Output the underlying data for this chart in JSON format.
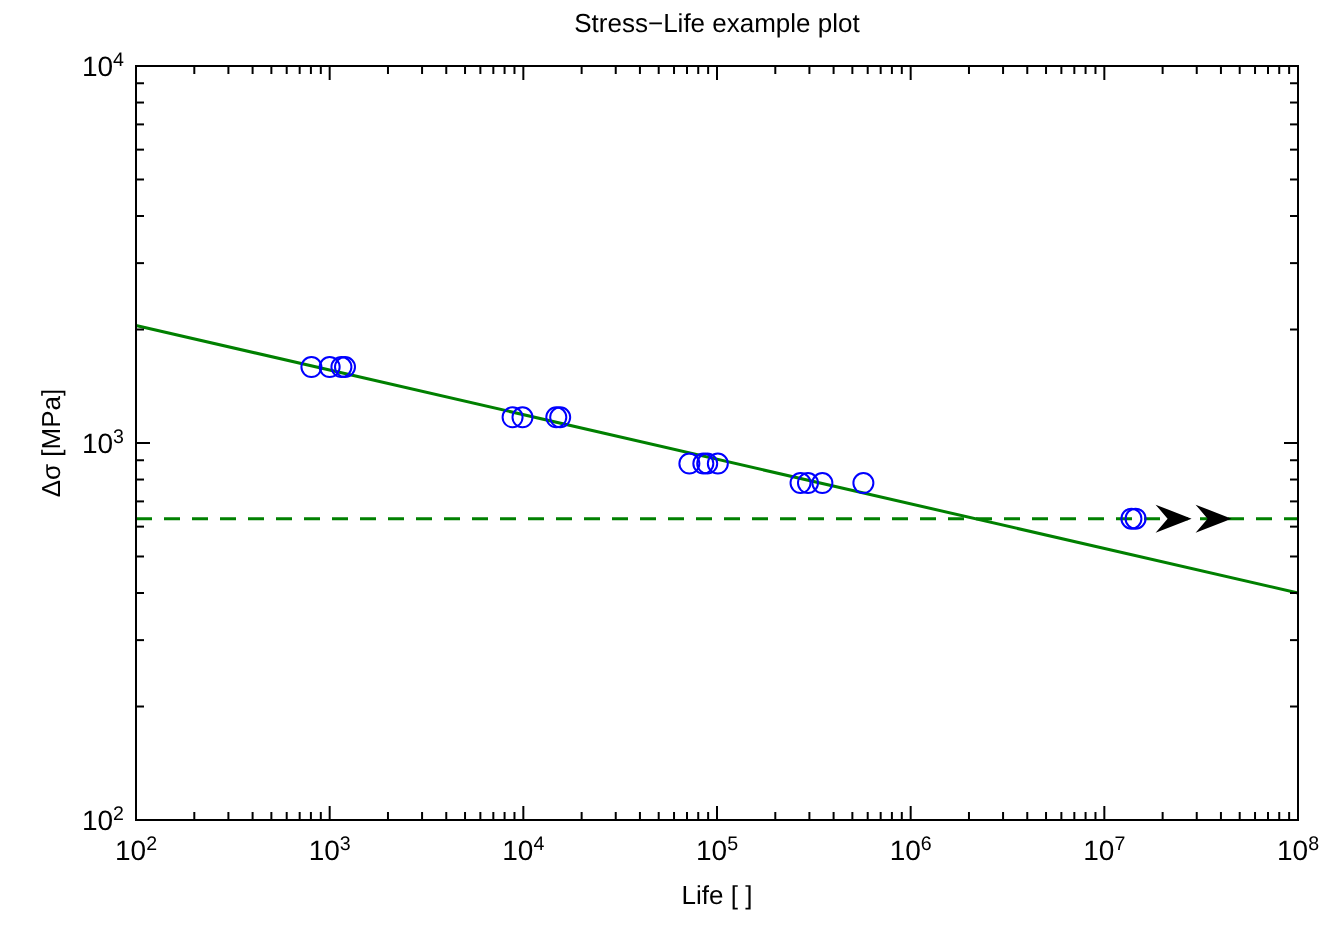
{
  "chart_data": {
    "type": "scatter",
    "title": "Stress−Life example plot",
    "xlabel": "Life [ ]",
    "ylabel": "Δσ [MPa]",
    "log": "xy",
    "grid": false,
    "marker": "circle",
    "xlim": [
      100,
      100000000
    ],
    "ylim": [
      100,
      10000
    ],
    "xticks": [
      {
        "value": 100,
        "label": "10$^{2}$"
      },
      {
        "value": 200,
        "label": null
      },
      {
        "value": 300,
        "label": null
      },
      {
        "value": 400,
        "label": null
      },
      {
        "value": 500,
        "label": null
      },
      {
        "value": 600,
        "label": null
      },
      {
        "value": 700,
        "label": null
      },
      {
        "value": 800,
        "label": null
      },
      {
        "value": 900,
        "label": null
      },
      {
        "value": 1000,
        "label": "10$^{3}$"
      },
      {
        "value": 2000,
        "label": null
      },
      {
        "value": 3000,
        "label": null
      },
      {
        "value": 4000,
        "label": null
      },
      {
        "value": 5000,
        "label": null
      },
      {
        "value": 6000,
        "label": null
      },
      {
        "value": 7000,
        "label": null
      },
      {
        "value": 8000,
        "label": null
      },
      {
        "value": 9000,
        "label": null
      },
      {
        "value": 10000,
        "label": "10$^{4}$"
      },
      {
        "value": 20000,
        "label": null
      },
      {
        "value": 30000,
        "label": null
      },
      {
        "value": 40000,
        "label": null
      },
      {
        "value": 50000,
        "label": null
      },
      {
        "value": 60000,
        "label": null
      },
      {
        "value": 70000,
        "label": null
      },
      {
        "value": 80000,
        "label": null
      },
      {
        "value": 90000,
        "label": null
      },
      {
        "value": 100000,
        "label": "10$^{5}$"
      },
      {
        "value": 200000,
        "label": null
      },
      {
        "value": 300000,
        "label": null
      },
      {
        "value": 400000,
        "label": null
      },
      {
        "value": 500000,
        "label": null
      },
      {
        "value": 600000,
        "label": null
      },
      {
        "value": 700000,
        "label": null
      },
      {
        "value": 800000,
        "label": null
      },
      {
        "value": 900000,
        "label": null
      },
      {
        "value": 1000000,
        "label": "10$^{6}$"
      },
      {
        "value": 2000000,
        "label": null
      },
      {
        "value": 3000000,
        "label": null
      },
      {
        "value": 4000000,
        "label": null
      },
      {
        "value": 5000000,
        "label": null
      },
      {
        "value": 6000000,
        "label": null
      },
      {
        "value": 7000000,
        "label": null
      },
      {
        "value": 8000000,
        "label": null
      },
      {
        "value": 9000000,
        "label": null
      },
      {
        "value": 10000000,
        "label": "10$^{7}$"
      },
      {
        "value": 20000000,
        "label": null
      },
      {
        "value": 30000000,
        "label": null
      },
      {
        "value": 40000000,
        "label": null
      },
      {
        "value": 50000000,
        "label": null
      },
      {
        "value": 60000000,
        "label": null
      },
      {
        "value": 70000000,
        "label": null
      },
      {
        "value": 80000000,
        "label": null
      },
      {
        "value": 90000000,
        "label": null
      },
      {
        "value": 100000000,
        "label": "10$^{8}$"
      }
    ],
    "yticks": [
      {
        "value": 100,
        "label": "10$^{2}$"
      },
      {
        "value": 200,
        "label": null
      },
      {
        "value": 300,
        "label": null
      },
      {
        "value": 400,
        "label": null
      },
      {
        "value": 500,
        "label": null
      },
      {
        "value": 600,
        "label": null
      },
      {
        "value": 700,
        "label": null
      },
      {
        "value": 800,
        "label": null
      },
      {
        "value": 900,
        "label": null
      },
      {
        "value": 1000,
        "label": "10$^{3}$"
      },
      {
        "value": 2000,
        "label": null
      },
      {
        "value": 3000,
        "label": null
      },
      {
        "value": 4000,
        "label": null
      },
      {
        "value": 5000,
        "label": null
      },
      {
        "value": 6000,
        "label": null
      },
      {
        "value": 7000,
        "label": null
      },
      {
        "value": 8000,
        "label": null
      },
      {
        "value": 9000,
        "label": null
      },
      {
        "value": 10000,
        "label": "10$^{4}$"
      }
    ],
    "series": [
      {
        "type": "line",
        "color": "#008000",
        "marker": "none",
        "line_style": "solid",
        "x": [
          100,
          100000000
        ],
        "values": [
          2050,
          400
        ]
      },
      {
        "color": "#0000ff",
        "x": [
          805,
          1000,
          1150,
          1200,
          8800,
          9900,
          14800,
          15500,
          72000,
          85000,
          89000,
          101000,
          270000,
          295000,
          350000,
          570000,
          13800000,
          14500000
        ],
        "values": [
          1590,
          1590,
          1590,
          1590,
          1170,
          1170,
          1170,
          1170,
          882,
          882,
          882,
          882,
          783,
          783,
          783,
          783,
          630,
          630
        ]
      }
    ],
    "ref_lines": [
      {
        "axis": "y",
        "value": 630,
        "color": "#008000",
        "line_style": "dashed"
      }
    ]
  }
}
